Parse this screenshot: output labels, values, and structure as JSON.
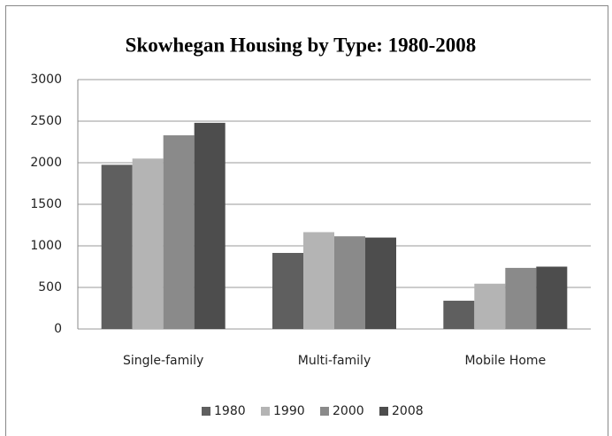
{
  "chart_data": {
    "type": "bar",
    "title": "Skowhegan Housing by Type: 1980-2008",
    "categories": [
      "Single-family",
      "Multi-family",
      "Mobile Home"
    ],
    "series": [
      {
        "name": "1980",
        "color": "#5f5f5f",
        "values": [
          1975,
          915,
          340
        ]
      },
      {
        "name": "1990",
        "color": "#b4b4b4",
        "values": [
          2050,
          1165,
          545
        ]
      },
      {
        "name": "2000",
        "color": "#8a8a8a",
        "values": [
          2330,
          1115,
          735
        ]
      },
      {
        "name": "2008",
        "color": "#4d4d4d",
        "values": [
          2480,
          1100,
          750
        ]
      }
    ],
    "ylim": [
      0,
      3000
    ],
    "yticks": [
      0,
      500,
      1000,
      1500,
      2000,
      2500,
      3000
    ],
    "grid": true,
    "legend": "bottom"
  }
}
